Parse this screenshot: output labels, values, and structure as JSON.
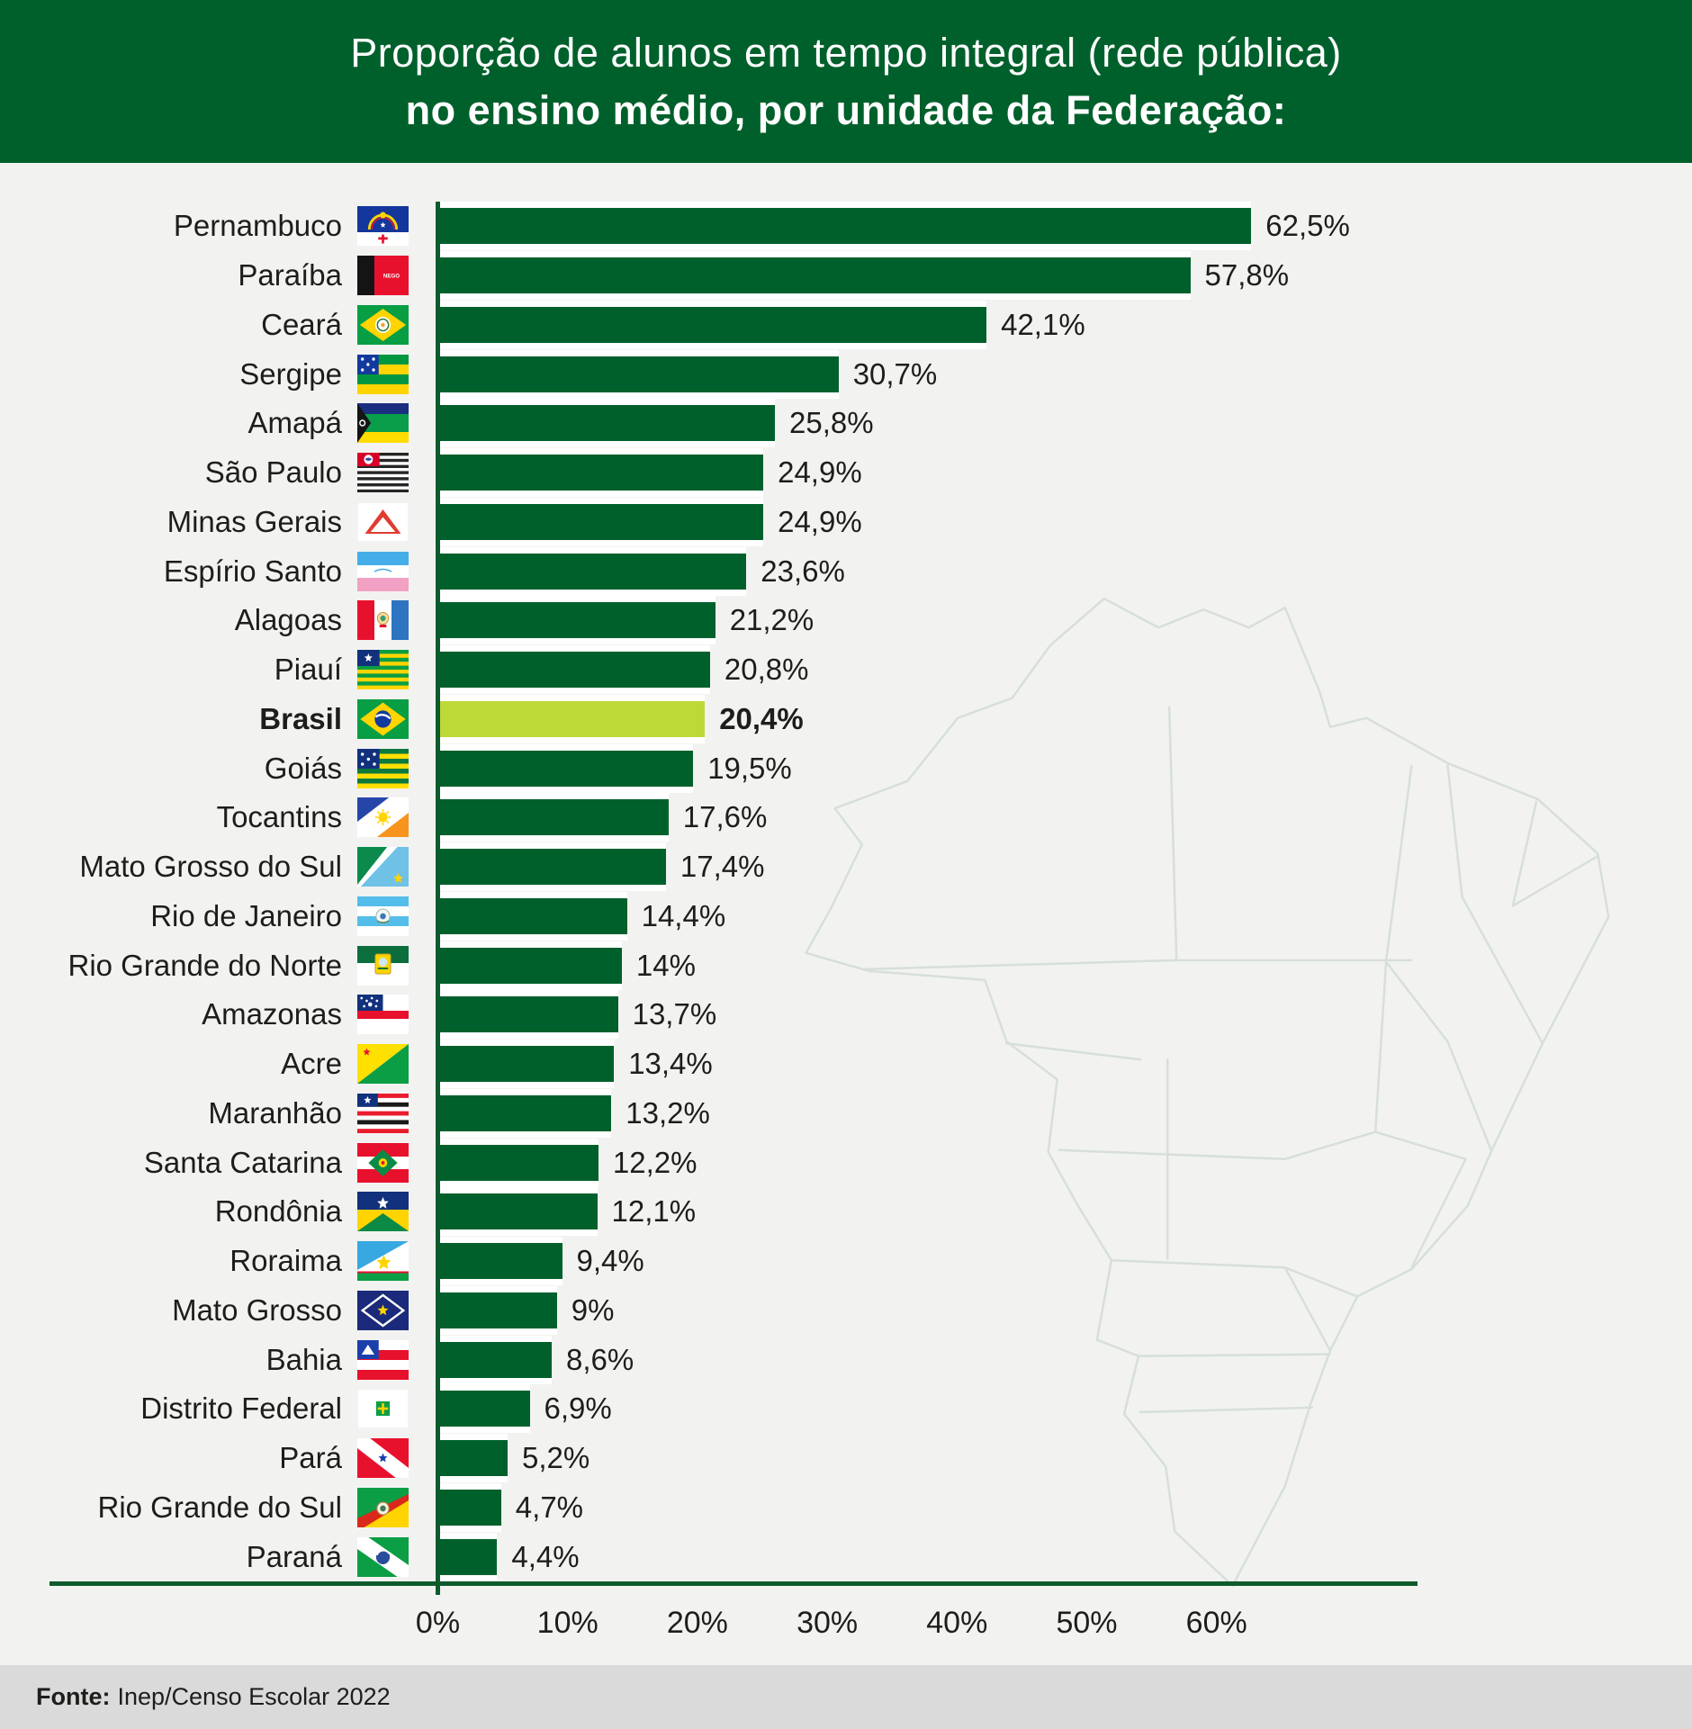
{
  "header": {
    "title_line1": "Proporção de alunos em tempo integral (rede pública)",
    "title_line2": "no ensino médio, por unidade da Federação:"
  },
  "footer": {
    "source_label": "Fonte:",
    "source_value": "Inep/Censo Escolar 2022"
  },
  "colors": {
    "header_bg": "#00602b",
    "bar": "#00602b",
    "highlight_bar": "#bdd938",
    "axis": "#0e5a2d",
    "background": "#f2f3f1",
    "footer_bg": "#dadada",
    "map_outline": "#d7dfda",
    "text": "#1d1d1b"
  },
  "chart_data": {
    "type": "bar",
    "orientation": "horizontal",
    "title": "Proporção de alunos em tempo integral (rede pública) no ensino médio, por unidade da Federação",
    "unit": "%",
    "grid": false,
    "x_axis": {
      "range": [
        0,
        60
      ],
      "tick_labels": [
        "0%",
        "10%",
        "20%",
        "30%",
        "40%",
        "50%",
        "60%"
      ]
    },
    "decoration": "faint Brazil states map outline in background",
    "rows": [
      {
        "label": "Pernambuco",
        "flag": "pernambuco-flag-icon",
        "value": 62.5,
        "value_label": "62,5%",
        "highlight": false
      },
      {
        "label": "Paraíba",
        "flag": "paraiba-flag-icon",
        "value": 57.8,
        "value_label": "57,8%",
        "highlight": false
      },
      {
        "label": "Ceará",
        "flag": "ceara-flag-icon",
        "value": 42.1,
        "value_label": "42,1%",
        "highlight": false
      },
      {
        "label": "Sergipe",
        "flag": "sergipe-flag-icon",
        "value": 30.7,
        "value_label": "30,7%",
        "highlight": false
      },
      {
        "label": "Amapá",
        "flag": "amapa-flag-icon",
        "value": 25.8,
        "value_label": "25,8%",
        "highlight": false
      },
      {
        "label": "São Paulo",
        "flag": "sao-paulo-flag-icon",
        "value": 24.9,
        "value_label": "24,9%",
        "highlight": false
      },
      {
        "label": "Minas Gerais",
        "flag": "minas-gerais-flag-icon",
        "value": 24.9,
        "value_label": "24,9%",
        "highlight": false
      },
      {
        "label": "Espírio Santo",
        "flag": "espirito-santo-flag-icon",
        "value": 23.6,
        "value_label": "23,6%",
        "highlight": false
      },
      {
        "label": "Alagoas",
        "flag": "alagoas-flag-icon",
        "value": 21.2,
        "value_label": "21,2%",
        "highlight": false
      },
      {
        "label": "Piauí",
        "flag": "piaui-flag-icon",
        "value": 20.8,
        "value_label": "20,8%",
        "highlight": false
      },
      {
        "label": "Brasil",
        "flag": "brasil-flag-icon",
        "value": 20.4,
        "value_label": "20,4%",
        "highlight": true
      },
      {
        "label": "Goiás",
        "flag": "goias-flag-icon",
        "value": 19.5,
        "value_label": "19,5%",
        "highlight": false
      },
      {
        "label": "Tocantins",
        "flag": "tocantins-flag-icon",
        "value": 17.6,
        "value_label": "17,6%",
        "highlight": false
      },
      {
        "label": "Mato Grosso do Sul",
        "flag": "mato-grosso-do-sul-flag-icon",
        "value": 17.4,
        "value_label": "17,4%",
        "highlight": false
      },
      {
        "label": "Rio de Janeiro",
        "flag": "rio-de-janeiro-flag-icon",
        "value": 14.4,
        "value_label": "14,4%",
        "highlight": false
      },
      {
        "label": "Rio Grande do Norte",
        "flag": "rio-grande-do-norte-flag-icon",
        "value": 14.0,
        "value_label": "14%",
        "highlight": false
      },
      {
        "label": "Amazonas",
        "flag": "amazonas-flag-icon",
        "value": 13.7,
        "value_label": "13,7%",
        "highlight": false
      },
      {
        "label": "Acre",
        "flag": "acre-flag-icon",
        "value": 13.4,
        "value_label": "13,4%",
        "highlight": false
      },
      {
        "label": "Maranhão",
        "flag": "maranhao-flag-icon",
        "value": 13.2,
        "value_label": "13,2%",
        "highlight": false
      },
      {
        "label": "Santa Catarina",
        "flag": "santa-catarina-flag-icon",
        "value": 12.2,
        "value_label": "12,2%",
        "highlight": false
      },
      {
        "label": "Rondônia",
        "flag": "rondonia-flag-icon",
        "value": 12.1,
        "value_label": "12,1%",
        "highlight": false
      },
      {
        "label": "Roraima",
        "flag": "roraima-flag-icon",
        "value": 9.4,
        "value_label": "9,4%",
        "highlight": false
      },
      {
        "label": "Mato Grosso",
        "flag": "mato-grosso-flag-icon",
        "value": 9.0,
        "value_label": "9%",
        "highlight": false
      },
      {
        "label": "Bahia",
        "flag": "bahia-flag-icon",
        "value": 8.6,
        "value_label": "8,6%",
        "highlight": false
      },
      {
        "label": "Distrito Federal",
        "flag": "distrito-federal-flag-icon",
        "value": 6.9,
        "value_label": "6,9%",
        "highlight": false
      },
      {
        "label": "Pará",
        "flag": "para-flag-icon",
        "value": 5.2,
        "value_label": "5,2%",
        "highlight": false
      },
      {
        "label": "Rio Grande do Sul",
        "flag": "rio-grande-do-sul-flag-icon",
        "value": 4.7,
        "value_label": "4,7%",
        "highlight": false
      },
      {
        "label": "Paraná",
        "flag": "parana-flag-icon",
        "value": 4.4,
        "value_label": "4,4%",
        "highlight": false
      }
    ]
  }
}
